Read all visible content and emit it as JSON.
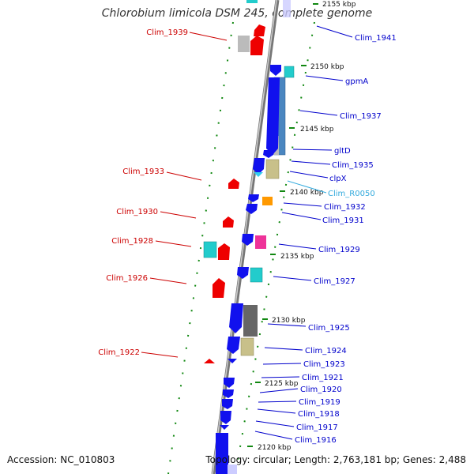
{
  "title": "Chlorobium limicola DSM 245, complete genome",
  "footer": {
    "accession": "Accession: NC_010803",
    "summary": "Topology: circular; Length: 2,763,181 bp; Genes: 2,488"
  },
  "colors": {
    "label_left": "#cc0000",
    "label_right": "#0000cc",
    "label_rna": "#33aadd",
    "backbone": "#999999",
    "tick": "#118811"
  },
  "kbp_labels": [
    "2155 kbp",
    "2150 kbp",
    "2145 kbp",
    "2140 kbp",
    "2135 kbp",
    "2130 kbp",
    "2125 kbp",
    "2120 kbp"
  ],
  "left_labels": [
    "Clim_1939",
    "Clim_1933",
    "Clim_1930",
    "Clim_1928",
    "Clim_1926",
    "Clim_1922"
  ],
  "right_labels": [
    "Clim_1941",
    "gpmA",
    "Clim_1937",
    "gltD",
    "Clim_1935",
    "clpX",
    "Clim_R0050",
    "Clim_1932",
    "Clim_1931",
    "Clim_1929",
    "Clim_1927",
    "Clim_1925",
    "Clim_1924",
    "Clim_1923",
    "Clim_1921",
    "Clim_1920",
    "Clim_1919",
    "Clim_1918",
    "Clim_1917",
    "Clim_1916"
  ]
}
